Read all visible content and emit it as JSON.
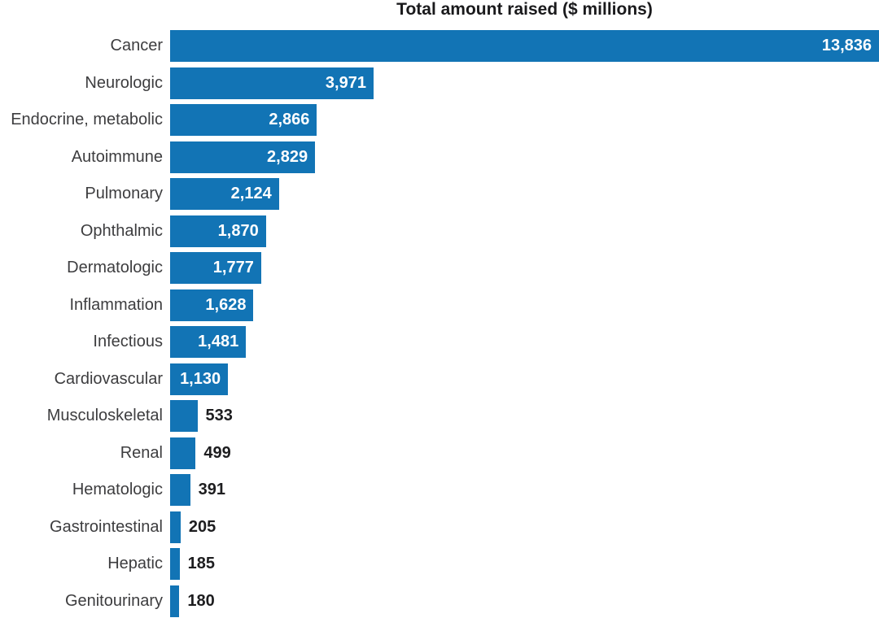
{
  "chart_data": {
    "type": "bar",
    "orientation": "horizontal",
    "title": "Total amount raised ($ millions)",
    "xlabel": "",
    "ylabel": "",
    "xlim": [
      0,
      13836
    ],
    "grid": false,
    "legend": false,
    "bar_color": "#1274B5",
    "title_color": "#1a1a1c",
    "category_label_color": "#3d3d3f",
    "value_label_inside_color": "#ffffff",
    "value_label_outside_color": "#1d1d1f",
    "categories": [
      "Cancer",
      "Neurologic",
      "Endocrine, metabolic",
      "Autoimmune",
      "Pulmonary",
      "Ophthalmic",
      "Dermatologic",
      "Inflammation",
      "Infectious",
      "Cardiovascular",
      "Musculoskeletal",
      "Renal",
      "Hematologic",
      "Gastrointestinal",
      "Hepatic",
      "Genitourinary"
    ],
    "values": [
      13836,
      3971,
      2866,
      2829,
      2124,
      1870,
      1777,
      1628,
      1481,
      1130,
      533,
      499,
      391,
      205,
      185,
      180
    ],
    "value_labels": [
      "13,836",
      "3,971",
      "2,866",
      "2,829",
      "2,124",
      "1,870",
      "1,777",
      "1,628",
      "1,481",
      "1,130",
      "533",
      "499",
      "391",
      "205",
      "185",
      "180"
    ],
    "value_label_inside": [
      true,
      true,
      true,
      true,
      true,
      true,
      true,
      true,
      true,
      true,
      false,
      false,
      false,
      false,
      false,
      false
    ]
  }
}
